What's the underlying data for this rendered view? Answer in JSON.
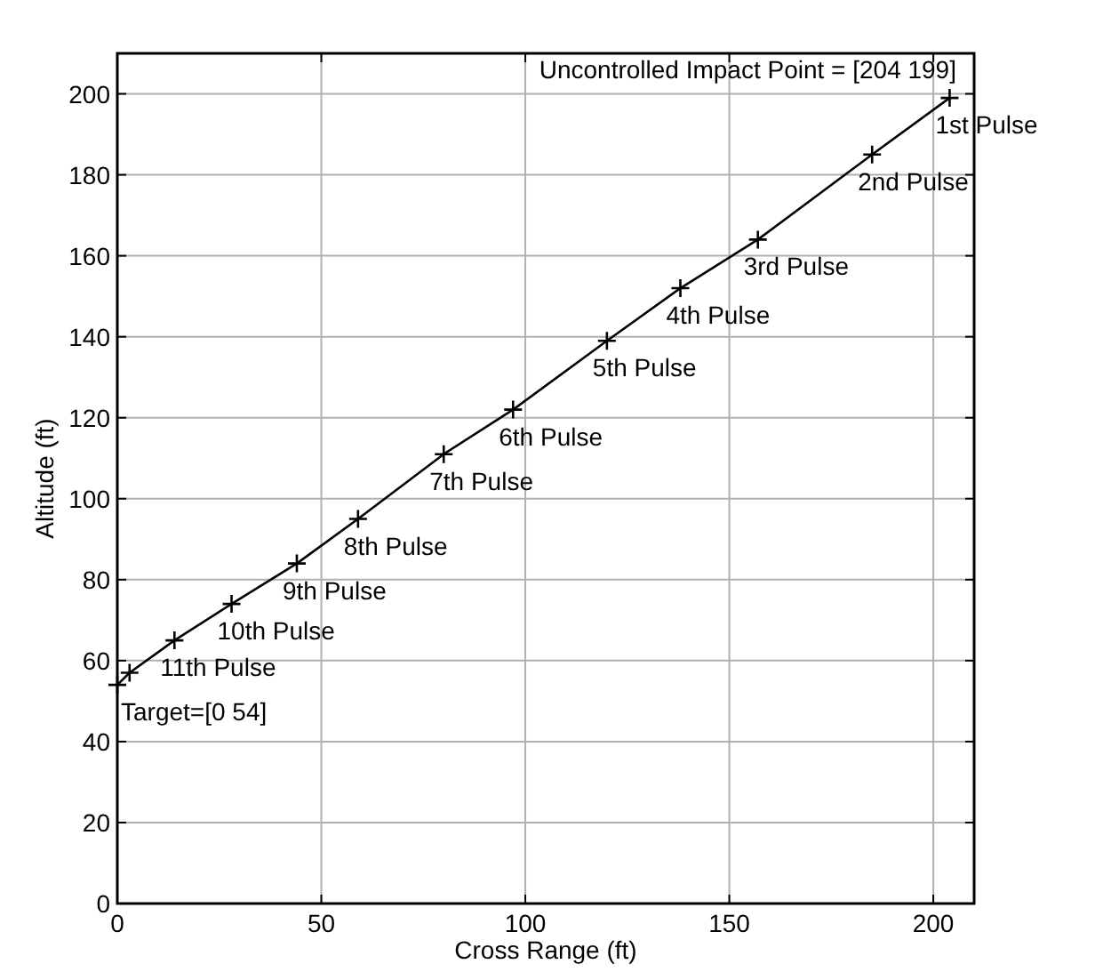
{
  "chart_data": {
    "type": "line",
    "xlabel": "Cross Range (ft)",
    "ylabel": "Altitude (ft)",
    "xlim": [
      0,
      210
    ],
    "xticks": [
      0,
      50,
      100,
      150,
      200
    ],
    "ylim": [
      0,
      210
    ],
    "yticks": [
      0,
      20,
      40,
      60,
      80,
      100,
      120,
      140,
      160,
      180,
      200
    ],
    "grid": true,
    "marker": "cross",
    "line_style": "solid",
    "series": [
      {
        "color": "#000000",
        "x": [
          204,
          185,
          157,
          138,
          120,
          97,
          80,
          59,
          44,
          28,
          14,
          3,
          0
        ],
        "values": [
          199,
          185,
          164,
          152,
          139,
          122,
          111,
          95,
          84,
          74,
          65,
          57,
          54
        ]
      }
    ],
    "annotations": [
      "Uncontrolled Impact Point = [204 199]",
      {
        "text": "1st Pulse",
        "x": 204,
        "y": 199
      },
      {
        "text": "2nd Pulse",
        "x": 185,
        "y": 185
      },
      {
        "text": "3rd Pulse",
        "x": 157,
        "y": 164
      },
      {
        "text": "4th Pulse",
        "x": 138,
        "y": 152
      },
      {
        "text": "5th Pulse",
        "x": 120,
        "y": 139
      },
      {
        "text": "6th Pulse",
        "x": 97,
        "y": 122
      },
      {
        "text": "7th Pulse",
        "x": 80,
        "y": 111
      },
      {
        "text": "8th Pulse",
        "x": 59,
        "y": 95
      },
      {
        "text": "9th Pulse",
        "x": 44,
        "y": 84
      },
      {
        "text": "10th Pulse",
        "x": 28,
        "y": 74
      },
      {
        "text": "11th Pulse",
        "x": 14,
        "y": 65
      },
      {
        "text": "Target=[0 54]",
        "x": 0,
        "y": 54
      }
    ]
  }
}
